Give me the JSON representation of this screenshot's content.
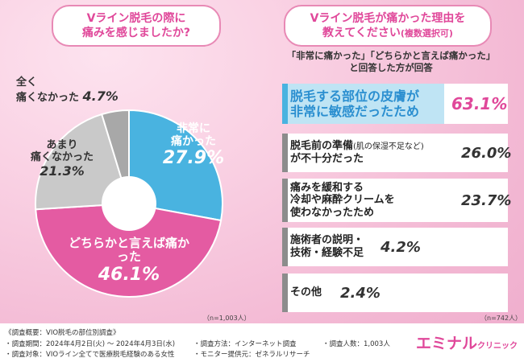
{
  "left": {
    "title_line1": "Vライン脱毛の際に",
    "title_line2": "痛みを感じましたか?",
    "n_note": "（n=1,003人）"
  },
  "right": {
    "title_line1": "Vライン脱毛が痛かった理由を",
    "title_line2": "教えてください",
    "title_paren": "(複数選択可)",
    "subtitle_line1": "「非常に痛かった」「どちらかと言えば痛かった」",
    "subtitle_line2": "と回答した方が回答",
    "n_note": "（n=742人）"
  },
  "chart_data": [
    {
      "type": "pie",
      "slices": [
        {
          "label": "非常に痛かった",
          "value": 27.9,
          "display": "27.9%",
          "color": "#49b3e0"
        },
        {
          "label": "どちらかと言えば痛かった",
          "value": 46.1,
          "display": "46.1%",
          "color": "#e45ba2"
        },
        {
          "label": "あまり痛くなかった",
          "value": 21.3,
          "display": "21.3%",
          "color": "#c9c9c9"
        },
        {
          "label": "全く痛くなかった",
          "value": 4.7,
          "display": "4.7%",
          "color": "#a8a8a8"
        }
      ]
    },
    {
      "type": "bar",
      "orientation": "horizontal",
      "xlim": [
        0,
        100
      ],
      "bars": [
        {
          "line1": "脱毛する部位の皮膚が",
          "line2": "非常に敏感だったため",
          "value": 63.1,
          "display": "63.1%",
          "color": "#49b3e0"
        },
        {
          "line1": "脱毛前の準備",
          "paren": "(肌の保湿不足など)",
          "line2": "が不十分だった",
          "value": 26.0,
          "display": "26.0%",
          "color": "#bdbdbd"
        },
        {
          "line1": "痛みを緩和する",
          "line2": "冷却や麻酔クリームを",
          "line3": "使わなかったため",
          "value": 23.7,
          "display": "23.7%",
          "color": "#bdbdbd"
        },
        {
          "line1": "施術者の説明・",
          "line2": "技術・経験不足",
          "value": 4.2,
          "display": "4.2%",
          "color": "#bdbdbd"
        },
        {
          "line1": "その他",
          "value": 2.4,
          "display": "2.4%",
          "color": "#bdbdbd"
        }
      ]
    }
  ],
  "footer": {
    "overview": "《調査概要：VIO脱毛の部位別調査》",
    "period": "・調査期間：2024年4月2日(火) ～ 2024年4月3日(水)",
    "target": "・調査対象：VIOライン全てで医療脱毛経験のある女性",
    "method": "・調査方法：インターネット調査",
    "monitor": "・モニター提供元：ゼネラルリサーチ",
    "count": "・調査人数：1,003人",
    "logo_main": "エミナル",
    "logo_sub": "クリニック"
  }
}
